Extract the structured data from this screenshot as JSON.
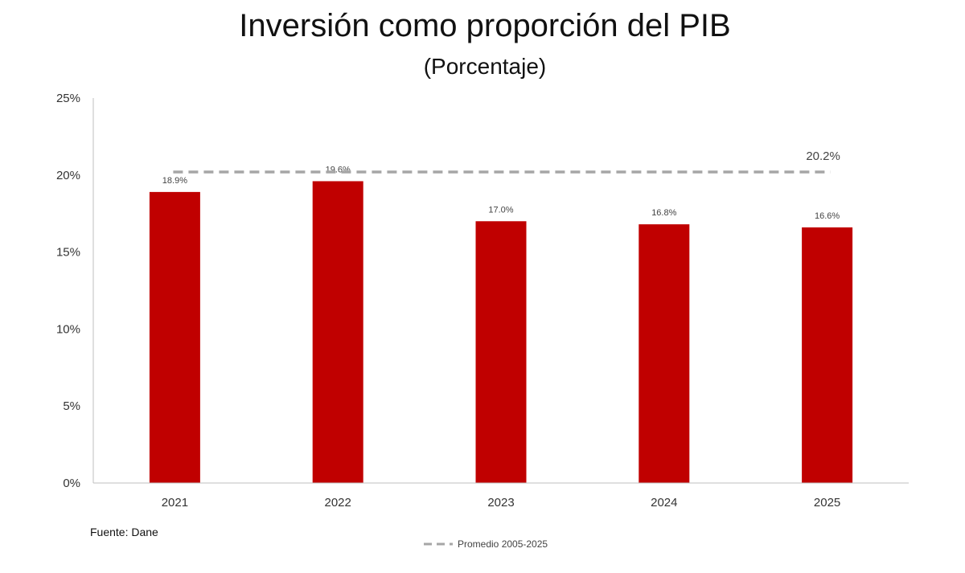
{
  "chart_data": {
    "type": "bar",
    "title": "Inversión como proporción del PIB",
    "subtitle": "(Porcentaje)",
    "categories": [
      "2021",
      "2022",
      "2023",
      "2024",
      "2025"
    ],
    "values": [
      18.9,
      19.6,
      17.0,
      16.8,
      16.6
    ],
    "value_labels": [
      "18.9%",
      "19.6%",
      "17.0%",
      "16.8%",
      "16.6%"
    ],
    "bar_color": "#C00000",
    "ylim": [
      0,
      25
    ],
    "yticks": [
      0,
      5,
      10,
      15,
      20,
      25
    ],
    "ytick_labels": [
      "0%",
      "5%",
      "10%",
      "15%",
      "20%",
      "25%"
    ],
    "grid": false,
    "reference_line": {
      "name": "Promedio 2005-2025",
      "value": 20.2,
      "label": "20.2%",
      "color": "#A6A6A6",
      "style": "dashed"
    },
    "legend": {
      "position": "bottom-center",
      "entries": [
        "Promedio 2005-2025"
      ]
    },
    "source": "Fuente: Dane"
  }
}
